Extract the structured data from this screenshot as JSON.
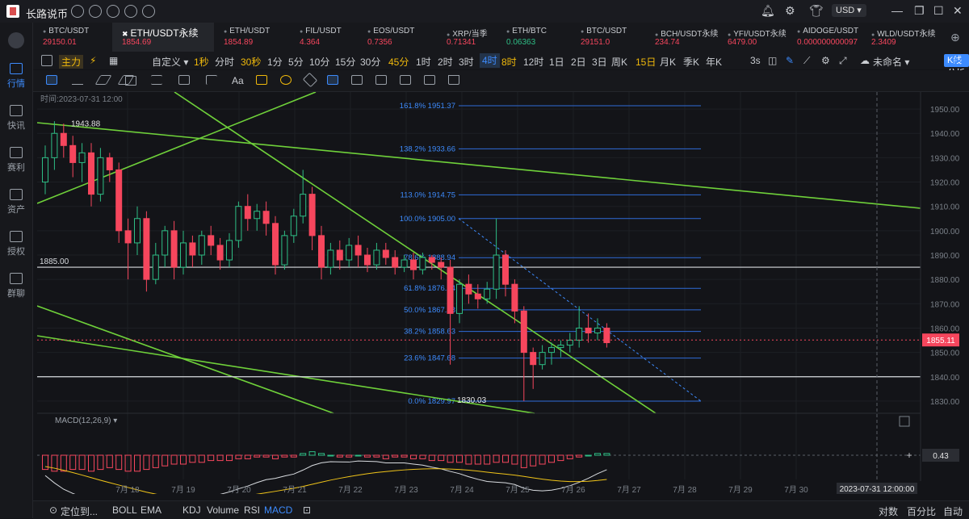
{
  "app": {
    "title": "长路说币",
    "currency": "USD"
  },
  "sidebar": [
    {
      "label": "行情",
      "icon": "market-icon",
      "active": true
    },
    {
      "label": "快讯",
      "icon": "news-icon"
    },
    {
      "label": "赛利",
      "icon": "event-icon"
    },
    {
      "label": "资产",
      "icon": "wallet-icon"
    },
    {
      "label": "授权",
      "icon": "auth-icon"
    },
    {
      "label": "群聊",
      "icon": "chat-icon"
    }
  ],
  "tabs": [
    {
      "name": "BTC/USDT",
      "price": "29150.01",
      "dir": "dn"
    },
    {
      "name": "ETH/USDT永续",
      "price": "1854.69",
      "dir": "dn",
      "active": true
    },
    {
      "name": "ETH/USDT",
      "price": "1854.89",
      "dir": "dn"
    },
    {
      "name": "FIL/USDT",
      "price": "4.364",
      "dir": "dn"
    },
    {
      "name": "EOS/USDT",
      "price": "0.7356",
      "dir": "dn"
    },
    {
      "name": "XRP/当季",
      "price": "0.71341",
      "dir": "dn"
    },
    {
      "name": "ETH/BTC",
      "price": "0.06363",
      "dir": "up"
    },
    {
      "name": "BTC/USDT",
      "price": "29151.0",
      "dir": "dn"
    },
    {
      "name": "BCH/USDT永续",
      "price": "234.74",
      "dir": "dn"
    },
    {
      "name": "YFI/USDT永续",
      "price": "6479.00",
      "dir": "dn"
    },
    {
      "name": "AIDOGE/USDT",
      "price": "0.000000000097",
      "dir": "dn"
    },
    {
      "name": "WLD/USDT永续",
      "price": "2.3409",
      "dir": "dn"
    }
  ],
  "toolbar": {
    "main_label": "主力",
    "custom_label": "自定义",
    "intervals": [
      "1秒",
      "分时",
      "30秒",
      "1分",
      "5分",
      "10分",
      "15分",
      "30分",
      "45分",
      "1时",
      "2时",
      "3时",
      "4时",
      "8时",
      "12时",
      "1日",
      "2日",
      "3日",
      "周K",
      "15日",
      "月K",
      "季K",
      "年K"
    ],
    "highlight": [
      "1秒",
      "30秒",
      "45分",
      "8时",
      "15日"
    ],
    "selected": "4时",
    "refresh": "3s",
    "unnamed": "未命名",
    "analysis_button": "K线分析"
  },
  "draw_tools": {
    "text_tool": "Aa"
  },
  "chart_data": {
    "type": "candlestick",
    "time_label": "时间:2023-07-31 12:00",
    "x_labels": [
      "7月 18",
      "7月 19",
      "7月 20",
      "7月 21",
      "7月 22",
      "7月 23",
      "7月 24",
      "7月 25",
      "7月 26",
      "7月 27",
      "7月 28",
      "7月 29",
      "7月 30"
    ],
    "crosshair_time": "2023-07-31 12:00:00",
    "y_ticks": [
      1830,
      1840,
      1850,
      1860,
      1870,
      1880,
      1890,
      1900,
      1910,
      1920,
      1930,
      1940,
      1950
    ],
    "ylim": [
      1825,
      1955
    ],
    "last_price": "1855.11",
    "high_marker": "1943.88",
    "low_marker": "1830.03",
    "hlines": [
      {
        "value": 1885.0,
        "label": "1885.00"
      },
      {
        "value": 1840.0,
        "label": ""
      }
    ],
    "fib_levels": [
      {
        "label": "161.8% 1951.37",
        "value": 1951.37
      },
      {
        "label": "138.2% 1933.66",
        "value": 1933.66
      },
      {
        "label": "113.0% 1914.75",
        "value": 1914.75
      },
      {
        "label": "100.0% 1905.00",
        "value": 1905.0
      },
      {
        "label": "78.6% 1888.94",
        "value": 1888.94
      },
      {
        "label": "61.8% 1876.34",
        "value": 1876.34
      },
      {
        "label": "50.0% 1867.48",
        "value": 1867.48
      },
      {
        "label": "38.2% 1858.63",
        "value": 1858.63
      },
      {
        "label": "23.6% 1847.68",
        "value": 1847.68
      },
      {
        "label": "0.0% 1829.97",
        "value": 1829.97
      }
    ],
    "candles": [
      [
        1920,
        1930,
        1915,
        1935
      ],
      [
        1930,
        1940,
        1925,
        1945
      ],
      [
        1940,
        1935,
        1930,
        1944
      ],
      [
        1935,
        1928,
        1922,
        1939
      ],
      [
        1928,
        1932,
        1920,
        1936
      ],
      [
        1932,
        1915,
        1910,
        1936
      ],
      [
        1915,
        1930,
        1912,
        1934
      ],
      [
        1930,
        1925,
        1920,
        1932
      ],
      [
        1925,
        1900,
        1895,
        1928
      ],
      [
        1900,
        1895,
        1880,
        1905
      ],
      [
        1895,
        1905,
        1890,
        1910
      ],
      [
        1905,
        1880,
        1875,
        1908
      ],
      [
        1880,
        1890,
        1878,
        1895
      ],
      [
        1890,
        1900,
        1885,
        1902
      ],
      [
        1900,
        1885,
        1880,
        1904
      ],
      [
        1885,
        1895,
        1882,
        1900
      ],
      [
        1895,
        1890,
        1885,
        1898
      ],
      [
        1890,
        1898,
        1886,
        1900
      ],
      [
        1898,
        1894,
        1890,
        1902
      ],
      [
        1894,
        1888,
        1884,
        1897
      ],
      [
        1888,
        1896,
        1885,
        1899
      ],
      [
        1896,
        1910,
        1893,
        1912
      ],
      [
        1910,
        1905,
        1900,
        1915
      ],
      [
        1905,
        1908,
        1900,
        1911
      ],
      [
        1908,
        1903,
        1898,
        1912
      ],
      [
        1903,
        1886,
        1882,
        1906
      ],
      [
        1886,
        1898,
        1884,
        1900
      ],
      [
        1898,
        1906,
        1895,
        1909
      ],
      [
        1906,
        1915,
        1903,
        1925
      ],
      [
        1915,
        1898,
        1892,
        1918
      ],
      [
        1898,
        1885,
        1880,
        1902
      ],
      [
        1885,
        1892,
        1882,
        1895
      ],
      [
        1892,
        1888,
        1884,
        1896
      ],
      [
        1888,
        1894,
        1885,
        1897
      ],
      [
        1894,
        1890,
        1885,
        1898
      ],
      [
        1890,
        1886,
        1883,
        1893
      ],
      [
        1886,
        1892,
        1884,
        1895
      ],
      [
        1892,
        1889,
        1886,
        1895
      ],
      [
        1889,
        1885,
        1882,
        1892
      ],
      [
        1885,
        1888,
        1883,
        1890
      ],
      [
        1888,
        1884,
        1880,
        1891
      ],
      [
        1884,
        1889,
        1882,
        1891
      ],
      [
        1889,
        1887,
        1884,
        1890
      ],
      [
        1887,
        1885,
        1880,
        1889
      ],
      [
        1885,
        1866,
        1845,
        1888
      ],
      [
        1866,
        1878,
        1862,
        1880
      ],
      [
        1878,
        1874,
        1870,
        1882
      ],
      [
        1874,
        1872,
        1868,
        1878
      ],
      [
        1872,
        1876,
        1870,
        1879
      ],
      [
        1876,
        1890,
        1872,
        1905
      ],
      [
        1890,
        1878,
        1873,
        1892
      ],
      [
        1878,
        1867,
        1862,
        1880
      ],
      [
        1867,
        1850,
        1830,
        1869
      ],
      [
        1850,
        1845,
        1835,
        1852
      ],
      [
        1845,
        1850,
        1843,
        1853
      ],
      [
        1850,
        1852,
        1845,
        1854
      ],
      [
        1852,
        1853,
        1848,
        1855
      ],
      [
        1853,
        1855,
        1850,
        1858
      ],
      [
        1855,
        1860,
        1852,
        1869
      ],
      [
        1860,
        1858,
        1854,
        1866
      ],
      [
        1858,
        1860,
        1855,
        1864
      ],
      [
        1860,
        1854,
        1852,
        1862
      ]
    ],
    "macd": {
      "label": "MACD(12,26,9)",
      "value_label": "0.43",
      "histogram": [
        -8,
        -9,
        -9,
        -8,
        -8,
        -9,
        -8,
        -7,
        -8,
        -9,
        -9,
        -8,
        -7,
        -6,
        -5,
        -5,
        -4,
        -4,
        -3,
        -3,
        -3,
        -2,
        -2,
        -1,
        -1,
        -2,
        -1,
        -1,
        1,
        2,
        1,
        0,
        -1,
        -1,
        0,
        -1,
        -1,
        -2,
        -1,
        -1,
        -2,
        -2,
        -3,
        -3,
        -4,
        -4,
        -5,
        -5,
        -5,
        -4,
        -4,
        -5,
        -7,
        -6,
        -5,
        -4,
        -3,
        -2,
        -1,
        0,
        1,
        1
      ]
    }
  },
  "bottombar": {
    "locate_label": "定位到...",
    "indicators": [
      "BOLL",
      "EMA",
      "KDJ",
      "Volume",
      "RSI",
      "MACD"
    ],
    "selected_indicator": "MACD",
    "right": [
      "对数",
      "百分比",
      "自动"
    ]
  }
}
